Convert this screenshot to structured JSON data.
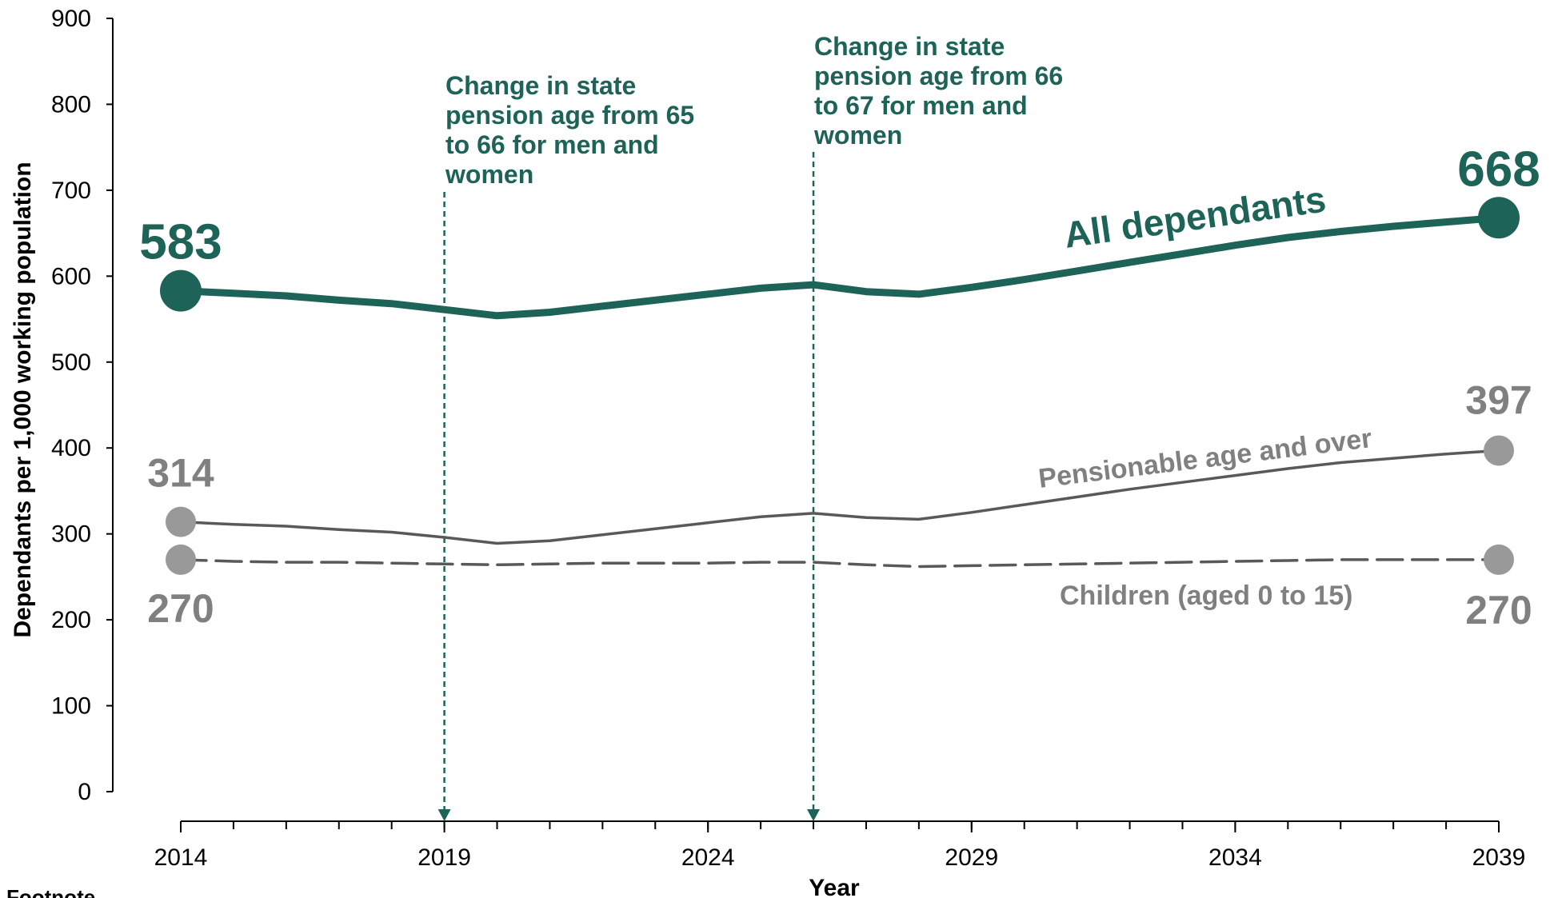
{
  "chart_data": {
    "type": "line",
    "title": "",
    "xlabel": "Year",
    "ylabel": "Dependants per 1,000 working population",
    "ylim": [
      0,
      900
    ],
    "yticks": [
      0,
      100,
      200,
      300,
      400,
      500,
      600,
      700,
      800,
      900
    ],
    "xlim": [
      2014,
      2039
    ],
    "xticks": [
      2014,
      2019,
      2024,
      2029,
      2034,
      2039
    ],
    "grid": false,
    "series": [
      {
        "name": "All dependants",
        "color": "#1d6357",
        "style": "solid-thick",
        "x": [
          2014,
          2015,
          2016,
          2017,
          2018,
          2019,
          2020,
          2021,
          2022,
          2023,
          2024,
          2025,
          2026,
          2027,
          2028,
          2029,
          2030,
          2031,
          2032,
          2033,
          2034,
          2035,
          2036,
          2037,
          2038,
          2039
        ],
        "values": [
          583,
          580,
          577,
          572,
          568,
          561,
          554,
          558,
          565,
          572,
          579,
          586,
          590,
          582,
          579,
          587,
          596,
          606,
          616,
          626,
          636,
          645,
          652,
          658,
          663,
          668
        ],
        "start_label": "583",
        "end_label": "668"
      },
      {
        "name": "Pensionable age and over",
        "color": "#595959",
        "style": "solid-thin",
        "x": [
          2014,
          2015,
          2016,
          2017,
          2018,
          2019,
          2020,
          2021,
          2022,
          2023,
          2024,
          2025,
          2026,
          2027,
          2028,
          2029,
          2030,
          2031,
          2032,
          2033,
          2034,
          2035,
          2036,
          2037,
          2038,
          2039
        ],
        "values": [
          314,
          311,
          309,
          305,
          302,
          296,
          289,
          292,
          299,
          306,
          313,
          320,
          324,
          319,
          317,
          325,
          334,
          343,
          352,
          360,
          368,
          376,
          383,
          388,
          393,
          397
        ],
        "start_label": "314",
        "end_label": "397"
      },
      {
        "name": "Children (aged 0 to 15)",
        "color": "#595959",
        "style": "dashed",
        "x": [
          2014,
          2015,
          2016,
          2017,
          2018,
          2019,
          2020,
          2021,
          2022,
          2023,
          2024,
          2025,
          2026,
          2027,
          2028,
          2029,
          2030,
          2031,
          2032,
          2033,
          2034,
          2035,
          2036,
          2037,
          2038,
          2039
        ],
        "values": [
          270,
          268,
          267,
          267,
          266,
          265,
          264,
          265,
          266,
          266,
          266,
          267,
          267,
          264,
          262,
          263,
          264,
          265,
          266,
          267,
          268,
          269,
          270,
          270,
          270,
          270
        ],
        "start_label": "270",
        "end_label": "270"
      }
    ],
    "annotations": [
      {
        "x": 2019,
        "lines": [
          "Change in state",
          "pension age from 65",
          "to 66 for men and",
          "women"
        ]
      },
      {
        "x": 2026,
        "lines": [
          "Change in state",
          "pension age from 66",
          "to 67 for men and",
          "women"
        ]
      }
    ]
  },
  "footnote": "Footnote"
}
